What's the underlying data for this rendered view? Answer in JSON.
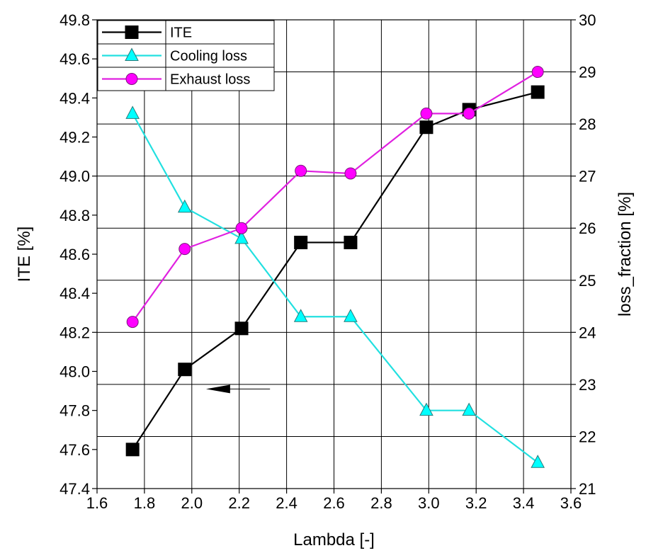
{
  "chart_data": {
    "type": "line",
    "xlabel": "Lambda [-]",
    "ylabel_left": "ITE [%]",
    "ylabel_right": "loss_fraction [%]",
    "xlim": [
      1.6,
      3.6
    ],
    "ylim_left": [
      47.4,
      49.8
    ],
    "ylim_right": [
      21,
      30
    ],
    "x_ticks": [
      "1.6",
      "1.8",
      "2.0",
      "2.2",
      "2.4",
      "2.6",
      "2.8",
      "3.0",
      "3.2",
      "3.4",
      "3.6"
    ],
    "y_left_ticks": [
      "47.4",
      "47.6",
      "47.8",
      "48.0",
      "48.2",
      "48.4",
      "48.6",
      "48.8",
      "49.0",
      "49.2",
      "49.4",
      "49.6",
      "49.8"
    ],
    "y_right_ticks": [
      "21",
      "22",
      "23",
      "24",
      "25",
      "26",
      "27",
      "28",
      "29",
      "30"
    ],
    "grid": true,
    "legend_position": "top-left",
    "series": [
      {
        "name": "ITE",
        "axis": "left",
        "marker": "square",
        "line_color": "#000000",
        "marker_color": "#000000",
        "x": [
          1.75,
          1.97,
          2.21,
          2.46,
          2.67,
          2.99,
          3.17,
          3.46
        ],
        "y": [
          47.6,
          48.01,
          48.22,
          48.66,
          48.66,
          49.25,
          49.34,
          49.43
        ]
      },
      {
        "name": "Cooling loss",
        "axis": "right",
        "marker": "triangle",
        "line_color": "#22e0e0",
        "marker_color": "#00ffff",
        "x": [
          1.75,
          1.97,
          2.21,
          2.46,
          2.67,
          2.99,
          3.17,
          3.46
        ],
        "y": [
          28.2,
          26.4,
          25.8,
          24.3,
          24.3,
          22.5,
          22.5,
          21.5
        ]
      },
      {
        "name": "Exhaust loss",
        "axis": "right",
        "marker": "circle",
        "line_color": "#e020e0",
        "marker_color": "#ff00ff",
        "x": [
          1.75,
          1.97,
          2.21,
          2.46,
          2.67,
          2.99,
          3.17,
          3.46
        ],
        "y": [
          24.2,
          25.6,
          26.0,
          27.1,
          27.05,
          28.2,
          28.2,
          29.0
        ]
      }
    ],
    "annotation": {
      "type": "arrow",
      "points_to_axis": "left",
      "x_from": 2.33,
      "x_to": 2.06,
      "y": 47.91
    }
  }
}
